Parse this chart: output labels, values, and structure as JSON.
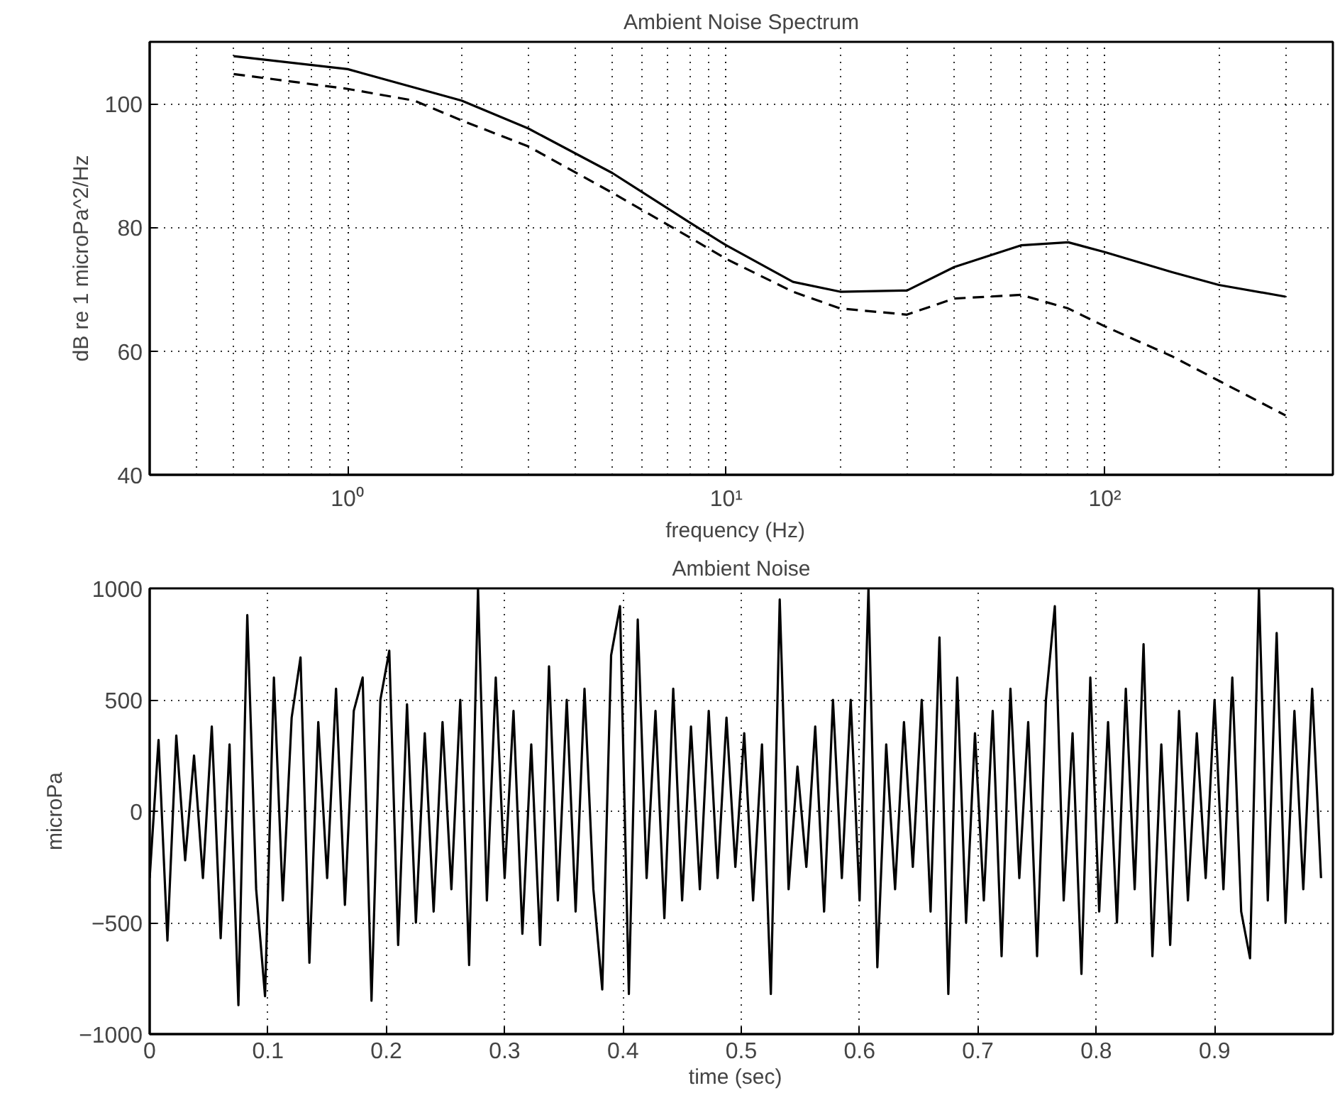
{
  "chart_data": [
    {
      "type": "line",
      "title": "Ambient Noise Spectrum",
      "xlabel": "frequency   (Hz)",
      "ylabel": "dB re 1 microPa^2/Hz",
      "log": "x",
      "grid": true,
      "xlim": [
        0.3,
        400
      ],
      "xticks": [
        {
          "value": 1,
          "label": "10⁰"
        },
        {
          "value": 10,
          "label": "10¹"
        },
        {
          "value": 100,
          "label": "10²"
        }
      ],
      "ylim": [
        40,
        110
      ],
      "yticks": [
        40,
        60,
        80,
        100
      ],
      "series": [
        {
          "color": "#000000",
          "line_style": "solid",
          "x": [
            0.5,
            1,
            2,
            3,
            5,
            8,
            10,
            15,
            20,
            30,
            40,
            60,
            80,
            100,
            150,
            200,
            300
          ],
          "values": [
            107.7,
            105.6,
            100.5,
            96,
            88.8,
            80.8,
            77.1,
            71.2,
            69.6,
            69.8,
            73.6,
            77.1,
            77.6,
            76,
            72.8,
            70.7,
            68.8
          ]
        },
        {
          "color": "#000000",
          "line_style": "dashed",
          "x": [
            0.5,
            1,
            1.5,
            2,
            3,
            5,
            8,
            10,
            15,
            20,
            30,
            40,
            60,
            80,
            100,
            150,
            200,
            300
          ],
          "values": [
            104.8,
            102.4,
            100.5,
            97.3,
            93.1,
            85.6,
            78.4,
            74.9,
            69.6,
            66.9,
            65.9,
            68.5,
            69.1,
            66.9,
            64,
            59.2,
            55.2,
            49.6
          ]
        }
      ]
    },
    {
      "type": "line",
      "title": "Ambient Noise",
      "xlabel": "time   (sec)",
      "ylabel": "microPa",
      "grid": true,
      "xlim": [
        0,
        1
      ],
      "xticks": [
        0,
        0.1,
        0.2,
        0.3,
        0.4,
        0.5,
        0.6,
        0.7,
        0.8,
        0.9
      ],
      "ylim": [
        -1000,
        1000
      ],
      "yticks": [
        {
          "value": -1000,
          "label": "−1000"
        },
        {
          "value": -500,
          "label": "−500"
        },
        0,
        500,
        1000
      ],
      "series": [
        {
          "color": "#000000",
          "line_style": "solid",
          "x": [
            0,
            0.0075,
            0.015,
            0.0225,
            0.03,
            0.0375,
            0.045,
            0.0525,
            0.06,
            0.0675,
            0.075,
            0.0825,
            0.09,
            0.0975,
            0.105,
            0.1125,
            0.12,
            0.1275,
            0.135,
            0.1425,
            0.15,
            0.1575,
            0.165,
            0.1725,
            0.18,
            0.1875,
            0.195,
            0.2025,
            0.21,
            0.2175,
            0.225,
            0.2325,
            0.24,
            0.2475,
            0.255,
            0.2625,
            0.27,
            0.2775,
            0.285,
            0.2925,
            0.3,
            0.3075,
            0.315,
            0.3225,
            0.33,
            0.3375,
            0.345,
            0.3525,
            0.36,
            0.3675,
            0.375,
            0.3825,
            0.39,
            0.3975,
            0.405,
            0.4125,
            0.42,
            0.4275,
            0.435,
            0.4425,
            0.45,
            0.4575,
            0.465,
            0.4725,
            0.48,
            0.4875,
            0.495,
            0.5025,
            0.51,
            0.5175,
            0.525,
            0.5325,
            0.54,
            0.5475,
            0.555,
            0.5625,
            0.57,
            0.5775,
            0.585,
            0.5925,
            0.6,
            0.6075,
            0.615,
            0.6225,
            0.63,
            0.6375,
            0.645,
            0.6525,
            0.66,
            0.6675,
            0.675,
            0.6825,
            0.69,
            0.6975,
            0.705,
            0.7125,
            0.72,
            0.7275,
            0.735,
            0.7425,
            0.75,
            0.7575,
            0.765,
            0.7725,
            0.78,
            0.7875,
            0.795,
            0.8025,
            0.81,
            0.8175,
            0.825,
            0.8325,
            0.84,
            0.8475,
            0.855,
            0.8625,
            0.87,
            0.8775,
            0.885,
            0.8925,
            0.9,
            0.9075,
            0.915,
            0.9225,
            0.93,
            0.9375,
            0.945,
            0.9525,
            0.96,
            0.9675,
            0.975,
            0.9825,
            0.99
          ],
          "values": [
            -300,
            320,
            -580,
            340,
            -220,
            250,
            -300,
            380,
            -570,
            300,
            -870,
            880,
            -350,
            -830,
            600,
            -400,
            420,
            690,
            -680,
            400,
            -300,
            550,
            -420,
            450,
            600,
            -850,
            500,
            720,
            -600,
            480,
            -500,
            350,
            -450,
            400,
            -350,
            500,
            -690,
            1000,
            -400,
            600,
            -300,
            450,
            -550,
            300,
            -600,
            650,
            -400,
            500,
            -450,
            550,
            -350,
            -800,
            700,
            920,
            -820,
            860,
            -300,
            450,
            -480,
            550,
            -400,
            380,
            -350,
            450,
            -300,
            420,
            -250,
            350,
            -400,
            300,
            -820,
            950,
            -350,
            200,
            -250,
            380,
            -450,
            500,
            -300,
            500,
            -400,
            1000,
            -700,
            300,
            -350,
            400,
            -250,
            500,
            -450,
            780,
            -820,
            600,
            -500,
            350,
            -400,
            450,
            -650,
            550,
            -300,
            400,
            -650,
            500,
            920,
            -400,
            350,
            -730,
            600,
            -450,
            400,
            -500,
            550,
            -350,
            750,
            -650,
            300,
            -600,
            450,
            -400,
            350,
            -300,
            500,
            -350,
            600,
            -450,
            -660,
            1000,
            -400,
            800,
            -500,
            450,
            -350,
            550,
            -300
          ]
        }
      ]
    }
  ]
}
